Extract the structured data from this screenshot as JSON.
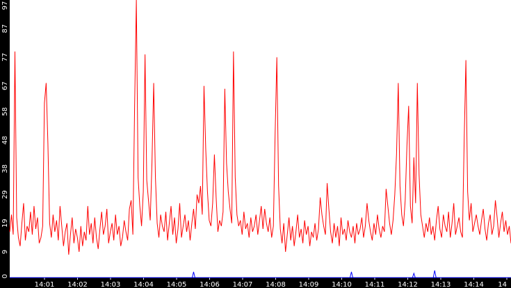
{
  "chart_data": {
    "type": "line",
    "background": "#000000",
    "plot_background": "#ffffff",
    "grid": false,
    "y_ticks": [
      0,
      9,
      19,
      29,
      38,
      48,
      58,
      67,
      77,
      87,
      97
    ],
    "y_tick_labels": [
      "0",
      "9",
      "19",
      "29",
      "38",
      "48",
      "58",
      "67",
      "77",
      "87",
      "97"
    ],
    "ylim": [
      0,
      97
    ],
    "x_ticks": [
      "14:01",
      "14:02",
      "14:03",
      "14:04",
      "14:05",
      "14:06",
      "14:07",
      "14:08",
      "14:09",
      "14:10",
      "14:11",
      "14:12",
      "14:13",
      "14:14",
      "14"
    ],
    "series": [
      {
        "color": "#ff0000",
        "values": [
          16,
          22,
          15,
          79,
          21,
          14,
          11,
          19,
          26,
          13,
          18,
          16,
          23,
          15,
          25,
          17,
          21,
          12,
          14,
          18,
          61,
          68,
          47,
          19,
          14,
          22,
          16,
          20,
          13,
          25,
          18,
          11,
          16,
          19,
          8,
          15,
          21,
          12,
          17,
          14,
          9,
          18,
          11,
          16,
          13,
          25,
          15,
          19,
          12,
          21,
          14,
          10,
          17,
          23,
          15,
          18,
          24,
          12,
          16,
          19,
          13,
          22,
          15,
          18,
          11,
          14,
          20,
          16,
          13,
          24,
          27,
          15,
          60,
          97,
          35,
          25,
          18,
          30,
          78,
          34,
          27,
          20,
          40,
          68,
          35,
          19,
          14,
          22,
          18,
          16,
          23,
          13,
          19,
          25,
          15,
          21,
          12,
          17,
          26,
          14,
          18,
          22,
          16,
          20,
          13,
          19,
          24,
          17,
          29,
          26,
          32,
          22,
          67,
          45,
          30,
          20,
          18,
          26,
          43,
          28,
          16,
          20,
          18,
          23,
          66,
          40,
          30,
          24,
          19,
          79,
          35,
          22,
          18,
          20,
          15,
          23,
          17,
          19,
          14,
          21,
          16,
          18,
          22,
          15,
          20,
          25,
          17,
          24,
          19,
          16,
          21,
          14,
          18,
          50,
          77,
          32,
          17,
          12,
          19,
          9,
          15,
          21,
          13,
          18,
          11,
          16,
          22,
          14,
          17,
          12,
          20,
          15,
          18,
          11,
          16,
          14,
          19,
          13,
          17,
          28,
          22,
          18,
          15,
          33,
          24,
          16,
          12,
          19,
          14,
          18,
          11,
          21,
          15,
          17,
          13,
          20,
          16,
          14,
          18,
          12,
          19,
          15,
          17,
          21,
          14,
          18,
          26,
          20,
          16,
          13,
          19,
          15,
          22,
          17,
          14,
          18,
          16,
          31,
          25,
          19,
          15,
          20,
          29,
          43,
          68,
          32,
          22,
          18,
          27,
          46,
          60,
          25,
          19,
          42,
          26,
          68,
          36,
          22,
          18,
          14,
          19,
          16,
          21,
          15,
          18,
          13,
          20,
          25,
          17,
          14,
          22,
          18,
          16,
          23,
          14,
          19,
          26,
          15,
          18,
          21,
          16,
          14,
          48,
          76,
          30,
          20,
          26,
          16,
          19,
          22,
          18,
          15,
          20,
          24,
          17,
          13,
          19,
          22,
          15,
          18,
          27,
          21,
          14,
          19,
          23,
          16,
          20,
          15,
          18,
          12
        ]
      },
      {
        "color": "#0000ff",
        "values": [
          0,
          0,
          0,
          0,
          0,
          0,
          0,
          0,
          0,
          0,
          0,
          0,
          0,
          0,
          0,
          0,
          0,
          0,
          0,
          0,
          0,
          0,
          0,
          0,
          0,
          0,
          0,
          0,
          0,
          0,
          0,
          0,
          0,
          0,
          0,
          0,
          0,
          0,
          0,
          0,
          0,
          0,
          0,
          0,
          0,
          0,
          0,
          0,
          0,
          0,
          0,
          0,
          0,
          0,
          0,
          0,
          0,
          0,
          0,
          0,
          0,
          0,
          0,
          0,
          0,
          0,
          0,
          0,
          0,
          0,
          0,
          0,
          0,
          0,
          0,
          0,
          0,
          0,
          0,
          0,
          0,
          0,
          0,
          0,
          0,
          0,
          0,
          0,
          0,
          0,
          0,
          0,
          0,
          0,
          0,
          0,
          0,
          0,
          0,
          0,
          0,
          0,
          0,
          0,
          0,
          0,
          0,
          0,
          0,
          0,
          0,
          0,
          0,
          0,
          0,
          0,
          0,
          0,
          0,
          0,
          0,
          0,
          0,
          0,
          0,
          0,
          0,
          0,
          0,
          0,
          0,
          0,
          0,
          0,
          0,
          0,
          0,
          0,
          0,
          0,
          0,
          0,
          0,
          0,
          0,
          0,
          0,
          0,
          0,
          0,
          0,
          0,
          0,
          0,
          0,
          0,
          0,
          0,
          0,
          0,
          0,
          0,
          0,
          0,
          0,
          0,
          0,
          0,
          0,
          0,
          0,
          0,
          0,
          0,
          0,
          0,
          0,
          0,
          0,
          0,
          0,
          0,
          0,
          0,
          0,
          0,
          0,
          0,
          0,
          0,
          0,
          0,
          0,
          0,
          0,
          0,
          0,
          0,
          0,
          0,
          0,
          0,
          0,
          0,
          0,
          0,
          0,
          0,
          0,
          0,
          0,
          0,
          0,
          0,
          0,
          0,
          0,
          0,
          0,
          0,
          0,
          0,
          0,
          0,
          0,
          0,
          0,
          0,
          0,
          0,
          0,
          0,
          0,
          0,
          0,
          0,
          0,
          0,
          0,
          0,
          0,
          0,
          0,
          0,
          0,
          0,
          0,
          0,
          0,
          0,
          0,
          0,
          0,
          0,
          0,
          0,
          0,
          0,
          0,
          0,
          0,
          0,
          0,
          0,
          0,
          0,
          0,
          0,
          0,
          0,
          0,
          0,
          0,
          0,
          0,
          0,
          0,
          0,
          0,
          0,
          0,
          0,
          0,
          0,
          0,
          0,
          0,
          0,
          0,
          0,
          0,
          0,
          0,
          0,
          0,
          0,
          0,
          0,
          0,
          0,
          0
        ]
      }
    ],
    "blue_spikes": [
      {
        "index": 106,
        "value": 2
      },
      {
        "index": 197,
        "value": 2
      },
      {
        "index": 233,
        "value": 1.5
      },
      {
        "index": 245,
        "value": 2.5
      }
    ]
  }
}
